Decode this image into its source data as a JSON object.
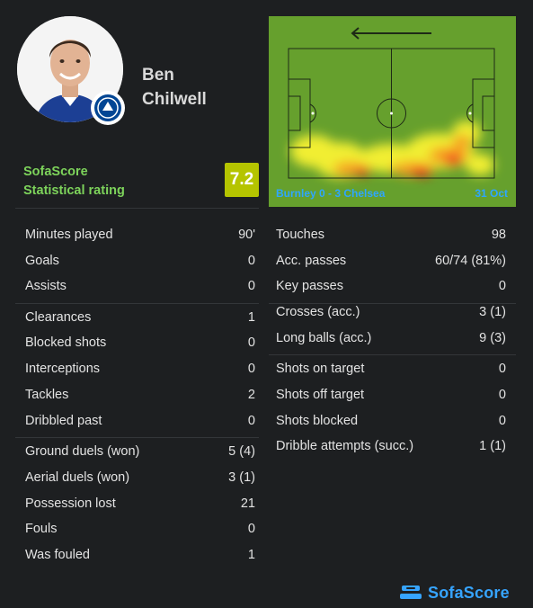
{
  "player": {
    "first_name": "Ben",
    "last_name": "Chilwell"
  },
  "rating": {
    "brand_label": "SofaScore",
    "sub_label": "Statistical rating",
    "value": "7.2",
    "color": "#b5c400"
  },
  "match": {
    "teams": "Burnley 0 - 3 Chelsea",
    "date": "31 Oct",
    "attack_direction": "left-arrow"
  },
  "left_stats": [
    {
      "label": "Minutes played",
      "value": "90'"
    },
    {
      "label": "Goals",
      "value": "0"
    },
    {
      "label": "Assists",
      "value": "0"
    },
    {
      "label": "Clearances",
      "value": "1"
    },
    {
      "label": "Blocked shots",
      "value": "0"
    },
    {
      "label": "Interceptions",
      "value": "0"
    },
    {
      "label": "Tackles",
      "value": "2"
    },
    {
      "label": "Dribbled past",
      "value": "0"
    },
    {
      "label": "Ground duels (won)",
      "value": "5 (4)"
    },
    {
      "label": "Aerial duels (won)",
      "value": "3 (1)"
    },
    {
      "label": "Possession lost",
      "value": "21"
    },
    {
      "label": "Fouls",
      "value": "0"
    },
    {
      "label": "Was fouled",
      "value": "1"
    }
  ],
  "right_stats": [
    {
      "label": "Touches",
      "value": "98"
    },
    {
      "label": "Acc. passes",
      "value": "60/74 (81%)"
    },
    {
      "label": "Key passes",
      "value": "0"
    },
    {
      "label": "Crosses (acc.)",
      "value": "3 (1)"
    },
    {
      "label": "Long balls (acc.)",
      "value": "9 (3)"
    },
    {
      "label": "Shots on target",
      "value": "0"
    },
    {
      "label": "Shots off target",
      "value": "0"
    },
    {
      "label": "Shots blocked",
      "value": "0"
    },
    {
      "label": "Dribble attempts (succ.)",
      "value": "1 (1)"
    }
  ],
  "footer": {
    "brand": "SofaScore",
    "brand_color": "#36a4ff"
  }
}
